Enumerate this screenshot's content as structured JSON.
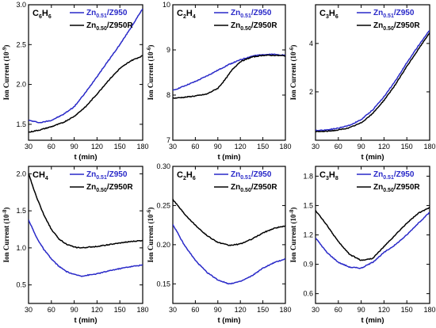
{
  "chart_data": [
    {
      "type": "line",
      "title_main": "C",
      "title_sub1": "6",
      "title_mid": "H",
      "title_sub2": "6",
      "xlabel": "t (min)",
      "ylabel_main": "Ion Current (10",
      "ylabel_exp": "-9",
      "ylabel_end": ")",
      "xlim": [
        30,
        180
      ],
      "xticks": [
        "30",
        "60",
        "90",
        "120",
        "150",
        "180"
      ],
      "ylim": [
        1.3,
        3.0
      ],
      "yticks": [
        "1.5",
        "2.0",
        "2.5",
        "3.0"
      ],
      "ytick_values": [
        1.5,
        2.0,
        2.5,
        3.0
      ],
      "legend_position": "top-right",
      "series": [
        {
          "name_main": "Zn",
          "name_sub": "0.51",
          "name_end": "/Z950",
          "color": "#2929c8",
          "x": [
            30,
            45,
            60,
            75,
            90,
            105,
            120,
            135,
            150,
            165,
            180
          ],
          "y": [
            1.55,
            1.52,
            1.55,
            1.62,
            1.72,
            1.9,
            2.1,
            2.3,
            2.5,
            2.72,
            2.95
          ]
        },
        {
          "name_main": "Zn",
          "name_sub": "0.50",
          "name_end": "/Z950R",
          "color": "#000000",
          "x": [
            30,
            45,
            60,
            75,
            90,
            105,
            120,
            135,
            150,
            165,
            180
          ],
          "y": [
            1.4,
            1.43,
            1.47,
            1.52,
            1.6,
            1.72,
            1.88,
            2.05,
            2.2,
            2.3,
            2.36
          ]
        }
      ]
    },
    {
      "type": "line",
      "title_main": "C",
      "title_sub1": "2",
      "title_mid": "H",
      "title_sub2": "4",
      "xlabel": "t (min)",
      "ylabel_main": "Ion Current (10",
      "ylabel_exp": "-6",
      "ylabel_end": ")",
      "xlim": [
        30,
        180
      ],
      "xticks": [
        "30",
        "60",
        "90",
        "120",
        "150",
        "180"
      ],
      "ylim": [
        7,
        10
      ],
      "yticks": [
        "7",
        "8",
        "9",
        "10"
      ],
      "ytick_values": [
        7,
        8,
        9,
        10
      ],
      "legend_position": "top-right",
      "series": [
        {
          "name_main": "Zn",
          "name_sub": "0.51",
          "name_end": "/Z950",
          "color": "#2929c8",
          "x": [
            30,
            45,
            60,
            75,
            90,
            105,
            120,
            135,
            150,
            165,
            180
          ],
          "y": [
            8.1,
            8.2,
            8.3,
            8.42,
            8.55,
            8.68,
            8.78,
            8.86,
            8.9,
            8.9,
            8.88
          ]
        },
        {
          "name_main": "Zn",
          "name_sub": "0.50",
          "name_end": "/Z950R",
          "color": "#000000",
          "x": [
            30,
            45,
            60,
            75,
            90,
            100,
            110,
            120,
            135,
            150,
            165,
            180
          ],
          "y": [
            7.93,
            7.95,
            7.98,
            8.02,
            8.15,
            8.35,
            8.58,
            8.74,
            8.84,
            8.88,
            8.88,
            8.87
          ]
        }
      ]
    },
    {
      "type": "line",
      "title_main": "C",
      "title_sub1": "3",
      "title_mid": "H",
      "title_sub2": "6",
      "xlabel": "t (min)",
      "ylabel_main": "Ion Current (10",
      "ylabel_exp": "-6",
      "ylabel_end": ")",
      "xlim": [
        30,
        180
      ],
      "xticks": [
        "30",
        "60",
        "90",
        "120",
        "150",
        "180"
      ],
      "ylim": [
        0,
        5.6
      ],
      "yticks": [
        "2",
        "4"
      ],
      "ytick_values": [
        2,
        4
      ],
      "legend_position": "top-right",
      "series": [
        {
          "name_main": "Zn",
          "name_sub": "0.51",
          "name_end": "/Z950",
          "color": "#2929c8",
          "x": [
            30,
            45,
            60,
            75,
            90,
            105,
            120,
            135,
            150,
            165,
            180
          ],
          "y": [
            0.4,
            0.43,
            0.5,
            0.62,
            0.85,
            1.25,
            1.8,
            2.45,
            3.2,
            3.9,
            4.55
          ]
        },
        {
          "name_main": "Zn",
          "name_sub": "0.50",
          "name_end": "/Z950R",
          "color": "#000000",
          "x": [
            30,
            45,
            60,
            75,
            90,
            105,
            120,
            135,
            150,
            165,
            180
          ],
          "y": [
            0.35,
            0.37,
            0.42,
            0.52,
            0.72,
            1.1,
            1.65,
            2.3,
            3.05,
            3.75,
            4.45
          ]
        }
      ]
    },
    {
      "type": "line",
      "title_main": "CH",
      "title_sub1": "4",
      "title_mid": "",
      "title_sub2": "",
      "xlabel": "t (min)",
      "ylabel_main": "Ion Current (10",
      "ylabel_exp": "-8",
      "ylabel_end": ")",
      "xlim": [
        30,
        180
      ],
      "xticks": [
        "30",
        "60",
        "90",
        "120",
        "150",
        "180"
      ],
      "ylim": [
        0.25,
        2.1
      ],
      "yticks": [
        "0.5",
        "1.0",
        "1.5",
        "2.0"
      ],
      "ytick_values": [
        0.5,
        1.0,
        1.5,
        2.0
      ],
      "legend_position": "top-right",
      "series": [
        {
          "name_main": "Zn",
          "name_sub": "0.51",
          "name_end": "/Z950",
          "color": "#2929c8",
          "x": [
            30,
            40,
            50,
            60,
            70,
            80,
            90,
            100,
            120,
            140,
            160,
            180
          ],
          "y": [
            1.38,
            1.15,
            0.98,
            0.85,
            0.75,
            0.68,
            0.64,
            0.62,
            0.65,
            0.7,
            0.74,
            0.77
          ]
        },
        {
          "name_main": "Zn",
          "name_sub": "0.50",
          "name_end": "/Z950R",
          "color": "#000000",
          "x": [
            30,
            40,
            50,
            60,
            70,
            80,
            90,
            100,
            120,
            140,
            160,
            180
          ],
          "y": [
            2.0,
            1.7,
            1.45,
            1.25,
            1.12,
            1.05,
            1.01,
            1.0,
            1.02,
            1.05,
            1.08,
            1.1
          ]
        }
      ]
    },
    {
      "type": "line",
      "title_main": "C",
      "title_sub1": "2",
      "title_mid": "H",
      "title_sub2": "6",
      "xlabel": "t (min)",
      "ylabel_main": "Ion Current (10",
      "ylabel_exp": "-6",
      "ylabel_end": ")",
      "xlim": [
        30,
        180
      ],
      "xticks": [
        "30",
        "60",
        "90",
        "120",
        "150",
        "180"
      ],
      "ylim": [
        0.125,
        0.3
      ],
      "yticks": [
        "0.15",
        "0.20",
        "0.25",
        "0.30"
      ],
      "ytick_values": [
        0.15,
        0.2,
        0.25,
        0.3
      ],
      "legend_position": "top-right",
      "series": [
        {
          "name_main": "Zn",
          "name_sub": "0.51",
          "name_end": "/Z950",
          "color": "#2929c8",
          "x": [
            30,
            45,
            60,
            75,
            90,
            105,
            120,
            135,
            150,
            165,
            180
          ],
          "y": [
            0.226,
            0.2,
            0.18,
            0.165,
            0.155,
            0.15,
            0.153,
            0.16,
            0.17,
            0.177,
            0.182
          ]
        },
        {
          "name_main": "Zn",
          "name_sub": "0.50",
          "name_end": "/Z950R",
          "color": "#000000",
          "x": [
            30,
            45,
            60,
            75,
            90,
            105,
            120,
            135,
            150,
            165,
            180
          ],
          "y": [
            0.258,
            0.24,
            0.225,
            0.212,
            0.203,
            0.199,
            0.201,
            0.207,
            0.215,
            0.221,
            0.224
          ]
        }
      ]
    },
    {
      "type": "line",
      "title_main": "C",
      "title_sub1": "3",
      "title_mid": "H",
      "title_sub2": "8",
      "xlabel": "t (min)",
      "ylabel_main": "Ion Current (10",
      "ylabel_exp": "-8",
      "ylabel_end": ")",
      "xlim": [
        30,
        180
      ],
      "xticks": [
        "30",
        "60",
        "90",
        "120",
        "150",
        "180"
      ],
      "ylim": [
        0.5,
        1.9
      ],
      "yticks": [
        "0.6",
        "0.9",
        "1.2",
        "1.5",
        "1.8"
      ],
      "ytick_values": [
        0.6,
        0.9,
        1.2,
        1.5,
        1.8
      ],
      "legend_position": "top-right",
      "series": [
        {
          "name_main": "Zn",
          "name_sub": "0.51",
          "name_end": "/Z950",
          "color": "#2929c8",
          "x": [
            30,
            45,
            60,
            75,
            90,
            105,
            120,
            135,
            150,
            165,
            180
          ],
          "y": [
            1.17,
            1.02,
            0.92,
            0.87,
            0.86,
            0.92,
            1.02,
            1.1,
            1.2,
            1.32,
            1.43
          ]
        },
        {
          "name_main": "Zn",
          "name_sub": "0.50",
          "name_end": "/Z950R",
          "color": "#000000",
          "x": [
            30,
            45,
            60,
            75,
            90,
            105,
            120,
            135,
            150,
            165,
            180
          ],
          "y": [
            1.45,
            1.3,
            1.13,
            1.0,
            0.94,
            0.96,
            1.08,
            1.2,
            1.32,
            1.42,
            1.48
          ]
        }
      ]
    }
  ]
}
